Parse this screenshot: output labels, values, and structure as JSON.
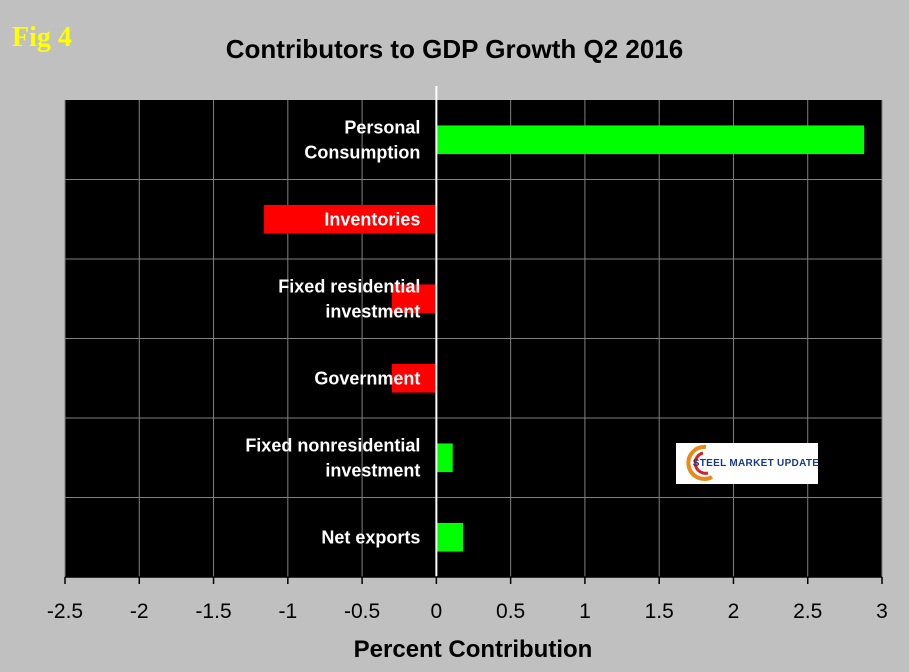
{
  "figure_label": "Fig 4",
  "logo": {
    "text": "STEEL MARKET UPDATE",
    "accent_color": "#1a3a8a"
  },
  "chart_data": {
    "type": "bar",
    "orientation": "horizontal",
    "title": "Contributors to GDP Growth Q2 2016",
    "xlabel": "Percent Contribution",
    "ylabel": "",
    "xlim": [
      -2.5,
      3
    ],
    "xticks": [
      -2.5,
      -2,
      -1.5,
      -1,
      -0.5,
      0,
      0.5,
      1,
      1.5,
      2,
      2.5,
      3
    ],
    "xtick_labels": [
      "-2.5",
      "-2",
      "-1.5",
      "-1",
      "-0.5",
      "0",
      "0.5",
      "1",
      "1.5",
      "2",
      "2.5",
      "3"
    ],
    "grid": true,
    "categories": [
      {
        "lines": [
          "Personal",
          "Consumption"
        ]
      },
      {
        "lines": [
          "Inventories"
        ]
      },
      {
        "lines": [
          "Fixed residential",
          "investment"
        ]
      },
      {
        "lines": [
          "Government"
        ]
      },
      {
        "lines": [
          "Fixed nonresidential",
          "investment"
        ]
      },
      {
        "lines": [
          "Net exports"
        ]
      }
    ],
    "values": [
      2.88,
      -1.16,
      -0.3,
      -0.3,
      0.11,
      0.18
    ],
    "colors": {
      "positive": "#00ff00",
      "negative": "#ff0000",
      "plot_bg": "#000000",
      "page_bg": "#c0c0c0",
      "grid": "#808080"
    }
  }
}
